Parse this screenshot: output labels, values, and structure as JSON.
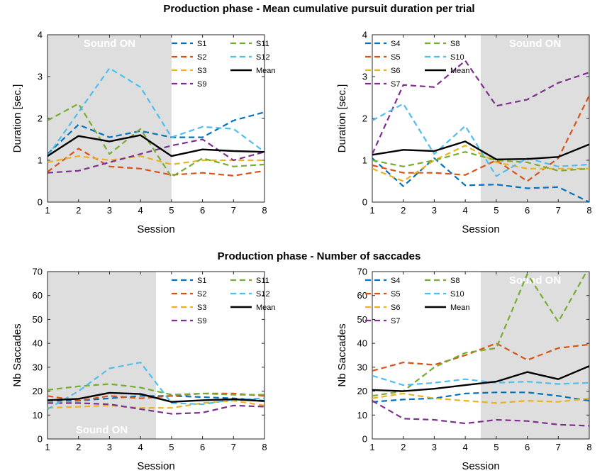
{
  "chart_data": [
    {
      "type": "line",
      "group_title": "Production phase - Mean cumulative pursuit duration per trial",
      "xlabel": "Session",
      "ylabel": "Duration [sec.]",
      "x": [
        1,
        2,
        3,
        4,
        5,
        6,
        7,
        8
      ],
      "xlim": [
        1,
        8
      ],
      "ylim": [
        0,
        4
      ],
      "yticks": [
        0,
        1,
        2,
        3,
        4
      ],
      "xticks": [
        1,
        2,
        3,
        4,
        5,
        6,
        7,
        8
      ],
      "shade_x": [
        1,
        5
      ],
      "shade_label": "Sound ON",
      "shade_label_pos": "top",
      "legend_cols": [
        [
          "S1",
          "S2",
          "S3",
          "S9"
        ],
        [
          "S11",
          "S12",
          "Mean"
        ]
      ],
      "series": [
        {
          "name": "S1",
          "color": "#0072BD",
          "dashed": true,
          "values": [
            1.15,
            1.85,
            1.55,
            1.7,
            1.55,
            1.55,
            1.95,
            2.15
          ]
        },
        {
          "name": "S2",
          "color": "#D95319",
          "dashed": true,
          "values": [
            0.72,
            1.28,
            0.85,
            0.8,
            0.65,
            0.7,
            0.63,
            0.75
          ]
        },
        {
          "name": "S3",
          "color": "#EDB120",
          "dashed": true,
          "values": [
            0.95,
            1.1,
            1.0,
            1.1,
            0.9,
            1.0,
            1.0,
            1.0
          ]
        },
        {
          "name": "S9",
          "color": "#7E2F8E",
          "dashed": true,
          "values": [
            0.7,
            0.75,
            0.95,
            1.15,
            1.35,
            1.5,
            1.0,
            1.2
          ]
        },
        {
          "name": "S11",
          "color": "#77AC30",
          "dashed": true,
          "values": [
            1.95,
            2.35,
            1.15,
            1.75,
            0.6,
            1.05,
            0.85,
            0.9
          ]
        },
        {
          "name": "S12",
          "color": "#4DBEEE",
          "dashed": true,
          "values": [
            1.1,
            2.15,
            3.2,
            2.75,
            1.55,
            1.8,
            1.75,
            1.2
          ]
        },
        {
          "name": "Mean",
          "color": "#000000",
          "dashed": false,
          "values": [
            1.1,
            1.58,
            1.45,
            1.6,
            1.1,
            1.26,
            1.22,
            1.2
          ]
        }
      ]
    },
    {
      "type": "line",
      "xlabel": "Session",
      "ylabel": "Duration [sec.]",
      "x": [
        1,
        2,
        3,
        4,
        5,
        6,
        7,
        8
      ],
      "xlim": [
        1,
        8
      ],
      "ylim": [
        0,
        4
      ],
      "yticks": [
        0,
        1,
        2,
        3,
        4
      ],
      "xticks": [
        1,
        2,
        3,
        4,
        5,
        6,
        7,
        8
      ],
      "shade_x": [
        4.5,
        8
      ],
      "shade_label": "Sound ON",
      "shade_label_pos": "top",
      "legend_cols": [
        [
          "S4",
          "S5",
          "S6",
          "S7"
        ],
        [
          "S8",
          "S10",
          "Mean"
        ]
      ],
      "series": [
        {
          "name": "S4",
          "color": "#0072BD",
          "dashed": true,
          "values": [
            1.05,
            0.38,
            1.05,
            0.4,
            0.42,
            0.33,
            0.36,
            0.0
          ]
        },
        {
          "name": "S5",
          "color": "#D95319",
          "dashed": true,
          "values": [
            0.88,
            0.7,
            0.7,
            0.65,
            1.0,
            0.5,
            1.05,
            2.55
          ]
        },
        {
          "name": "S6",
          "color": "#EDB120",
          "dashed": true,
          "values": [
            0.8,
            0.5,
            1.0,
            1.35,
            0.95,
            0.8,
            0.8,
            0.8
          ]
        },
        {
          "name": "S7",
          "color": "#7E2F8E",
          "dashed": true,
          "values": [
            1.15,
            2.8,
            2.75,
            3.38,
            2.3,
            2.45,
            2.85,
            3.1
          ]
        },
        {
          "name": "S8",
          "color": "#77AC30",
          "dashed": true,
          "values": [
            1.0,
            0.85,
            1.0,
            1.2,
            1.0,
            0.95,
            0.75,
            0.8
          ]
        },
        {
          "name": "S10",
          "color": "#4DBEEE",
          "dashed": true,
          "values": [
            1.95,
            2.35,
            1.15,
            1.82,
            0.62,
            1.05,
            0.85,
            0.9
          ]
        },
        {
          "name": "Mean",
          "color": "#000000",
          "dashed": false,
          "values": [
            1.13,
            1.25,
            1.22,
            1.45,
            1.02,
            1.03,
            1.08,
            1.38
          ]
        }
      ]
    },
    {
      "type": "line",
      "group_title": "Production phase - Number of saccades",
      "xlabel": "Session",
      "ylabel": "Nb Saccades",
      "x": [
        1,
        2,
        3,
        4,
        5,
        6,
        7,
        8
      ],
      "xlim": [
        1,
        8
      ],
      "ylim": [
        0,
        70
      ],
      "yticks": [
        0,
        10,
        20,
        30,
        40,
        50,
        60,
        70
      ],
      "xticks": [
        1,
        2,
        3,
        4,
        5,
        6,
        7,
        8
      ],
      "shade_x": [
        1,
        4.5
      ],
      "shade_label": "Sound ON",
      "shade_label_pos": "bottom",
      "legend_cols": [
        [
          "S1",
          "S2",
          "S3",
          "S9"
        ],
        [
          "S11",
          "S12",
          "Mean"
        ]
      ],
      "series": [
        {
          "name": "S1",
          "color": "#0072BD",
          "dashed": true,
          "values": [
            16,
            16,
            17,
            18,
            18,
            17.5,
            17,
            16
          ]
        },
        {
          "name": "S2",
          "color": "#D95319",
          "dashed": true,
          "values": [
            18,
            16,
            18,
            17,
            18,
            19,
            19,
            18
          ]
        },
        {
          "name": "S3",
          "color": "#EDB120",
          "dashed": true,
          "values": [
            13,
            13.5,
            14,
            13,
            13,
            15,
            16,
            14
          ]
        },
        {
          "name": "S9",
          "color": "#7E2F8E",
          "dashed": true,
          "values": [
            15,
            15,
            14.5,
            12.5,
            10.5,
            11,
            14,
            13.5
          ]
        },
        {
          "name": "S11",
          "color": "#77AC30",
          "dashed": true,
          "values": [
            20.5,
            22,
            23,
            21.5,
            18.5,
            19,
            18.5,
            18.5
          ]
        },
        {
          "name": "S12",
          "color": "#4DBEEE",
          "dashed": true,
          "values": [
            12.5,
            20,
            29.5,
            32,
            15,
            14.5,
            16.5,
            17
          ]
        },
        {
          "name": "Mean",
          "color": "#000000",
          "dashed": false,
          "values": [
            16.2,
            16.8,
            19.3,
            18.8,
            15.5,
            16.2,
            16.6,
            15.8
          ]
        }
      ]
    },
    {
      "type": "line",
      "xlabel": "Session",
      "ylabel": "Nb Saccades",
      "x": [
        1,
        2,
        3,
        4,
        5,
        6,
        7,
        8
      ],
      "xlim": [
        1,
        8
      ],
      "ylim": [
        0,
        70
      ],
      "yticks": [
        0,
        10,
        20,
        30,
        40,
        50,
        60,
        70
      ],
      "xticks": [
        1,
        2,
        3,
        4,
        5,
        6,
        7,
        8
      ],
      "shade_x": [
        4.5,
        8
      ],
      "shade_label": "Sound ON",
      "shade_label_pos": "top",
      "legend_cols": [
        [
          "S4",
          "S5",
          "S6",
          "S7"
        ],
        [
          "S8",
          "S10",
          "Mean"
        ]
      ],
      "series": [
        {
          "name": "S4",
          "color": "#0072BD",
          "dashed": true,
          "values": [
            15.5,
            16.5,
            17,
            19,
            19.5,
            19.5,
            18,
            16
          ]
        },
        {
          "name": "S5",
          "color": "#D95319",
          "dashed": true,
          "values": [
            28.5,
            32,
            31,
            35,
            40,
            33,
            38,
            39.5
          ]
        },
        {
          "name": "S6",
          "color": "#EDB120",
          "dashed": true,
          "values": [
            17,
            19,
            17,
            16,
            15,
            16,
            15.5,
            17
          ]
        },
        {
          "name": "S7",
          "color": "#7E2F8E",
          "dashed": true,
          "values": [
            16,
            8.5,
            8,
            6.5,
            8,
            7.5,
            6,
            5.5
          ]
        },
        {
          "name": "S8",
          "color": "#77AC30",
          "dashed": true,
          "values": [
            18,
            20,
            30,
            36,
            38,
            69,
            49,
            72
          ]
        },
        {
          "name": "S10",
          "color": "#4DBEEE",
          "dashed": true,
          "values": [
            26.5,
            22.5,
            23.5,
            25,
            23.5,
            24,
            23,
            23.5
          ]
        },
        {
          "name": "Mean",
          "color": "#000000",
          "dashed": false,
          "values": [
            20.5,
            20,
            21,
            22.5,
            24,
            28,
            25,
            30.5
          ]
        }
      ]
    }
  ]
}
